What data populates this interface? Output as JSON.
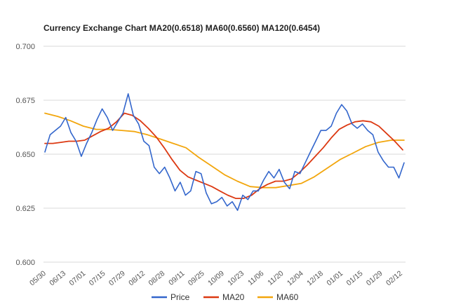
{
  "chart_data": {
    "type": "line",
    "title": "Currency Exchange Chart MA20(0.6518) MA60(0.6560) MA120(0.6454)",
    "xlabel": "",
    "ylabel": "",
    "ylim": [
      0.6,
      0.7
    ],
    "yticks": [
      "0.700",
      "0.675",
      "0.650",
      "0.625",
      "0.600"
    ],
    "x_tick_labels": [
      "05/30",
      "06/13",
      "07/01",
      "07/15",
      "07/29",
      "08/12",
      "08/28",
      "09/11",
      "09/25",
      "10/09",
      "10/23",
      "11/06",
      "11/20",
      "12/04",
      "12/18",
      "01/01",
      "01/15",
      "01/29",
      "02/12"
    ],
    "grid": "horizontal",
    "legend_position": "bottom",
    "series": [
      {
        "name": "Price",
        "color": "#3366cc",
        "values": [
          0.651,
          0.659,
          0.661,
          0.663,
          0.667,
          0.66,
          0.656,
          0.649,
          0.655,
          0.66,
          0.666,
          0.671,
          0.667,
          0.661,
          0.665,
          0.669,
          0.678,
          0.668,
          0.664,
          0.656,
          0.654,
          0.644,
          0.641,
          0.644,
          0.639,
          0.633,
          0.637,
          0.631,
          0.633,
          0.642,
          0.641,
          0.632,
          0.627,
          0.628,
          0.63,
          0.626,
          0.628,
          0.624,
          0.631,
          0.629,
          0.633,
          0.633,
          0.638,
          0.642,
          0.639,
          0.643,
          0.637,
          0.634,
          0.642,
          0.641,
          0.646,
          0.651,
          0.656,
          0.661,
          0.661,
          0.663,
          0.669,
          0.673,
          0.67,
          0.664,
          0.662,
          0.664,
          0.661,
          0.659,
          0.651,
          0.647,
          0.644,
          0.644,
          0.639,
          0.646
        ]
      },
      {
        "name": "MA20",
        "color": "#dc3912",
        "values": [
          0.655,
          0.655,
          0.6555,
          0.656,
          0.656,
          0.6565,
          0.6585,
          0.6605,
          0.662,
          0.665,
          0.669,
          0.668,
          0.6655,
          0.662,
          0.658,
          0.653,
          0.6475,
          0.6425,
          0.6395,
          0.638,
          0.6365,
          0.635,
          0.633,
          0.631,
          0.6295,
          0.6295,
          0.631,
          0.634,
          0.636,
          0.6375,
          0.6375,
          0.6385,
          0.6415,
          0.645,
          0.649,
          0.653,
          0.6575,
          0.6615,
          0.6635,
          0.665,
          0.6655,
          0.665,
          0.663,
          0.6595,
          0.656,
          0.652
        ]
      },
      {
        "name": "MA60",
        "color": "#f2a60d",
        "values": [
          0.669,
          0.6675,
          0.6655,
          0.663,
          0.6615,
          0.6615,
          0.661,
          0.6605,
          0.659,
          0.657,
          0.655,
          0.653,
          0.6485,
          0.6445,
          0.6405,
          0.6375,
          0.635,
          0.6345,
          0.6345,
          0.6355,
          0.6365,
          0.6395,
          0.6435,
          0.6475,
          0.6505,
          0.6535,
          0.6555,
          0.6565,
          0.6565
        ]
      }
    ]
  }
}
